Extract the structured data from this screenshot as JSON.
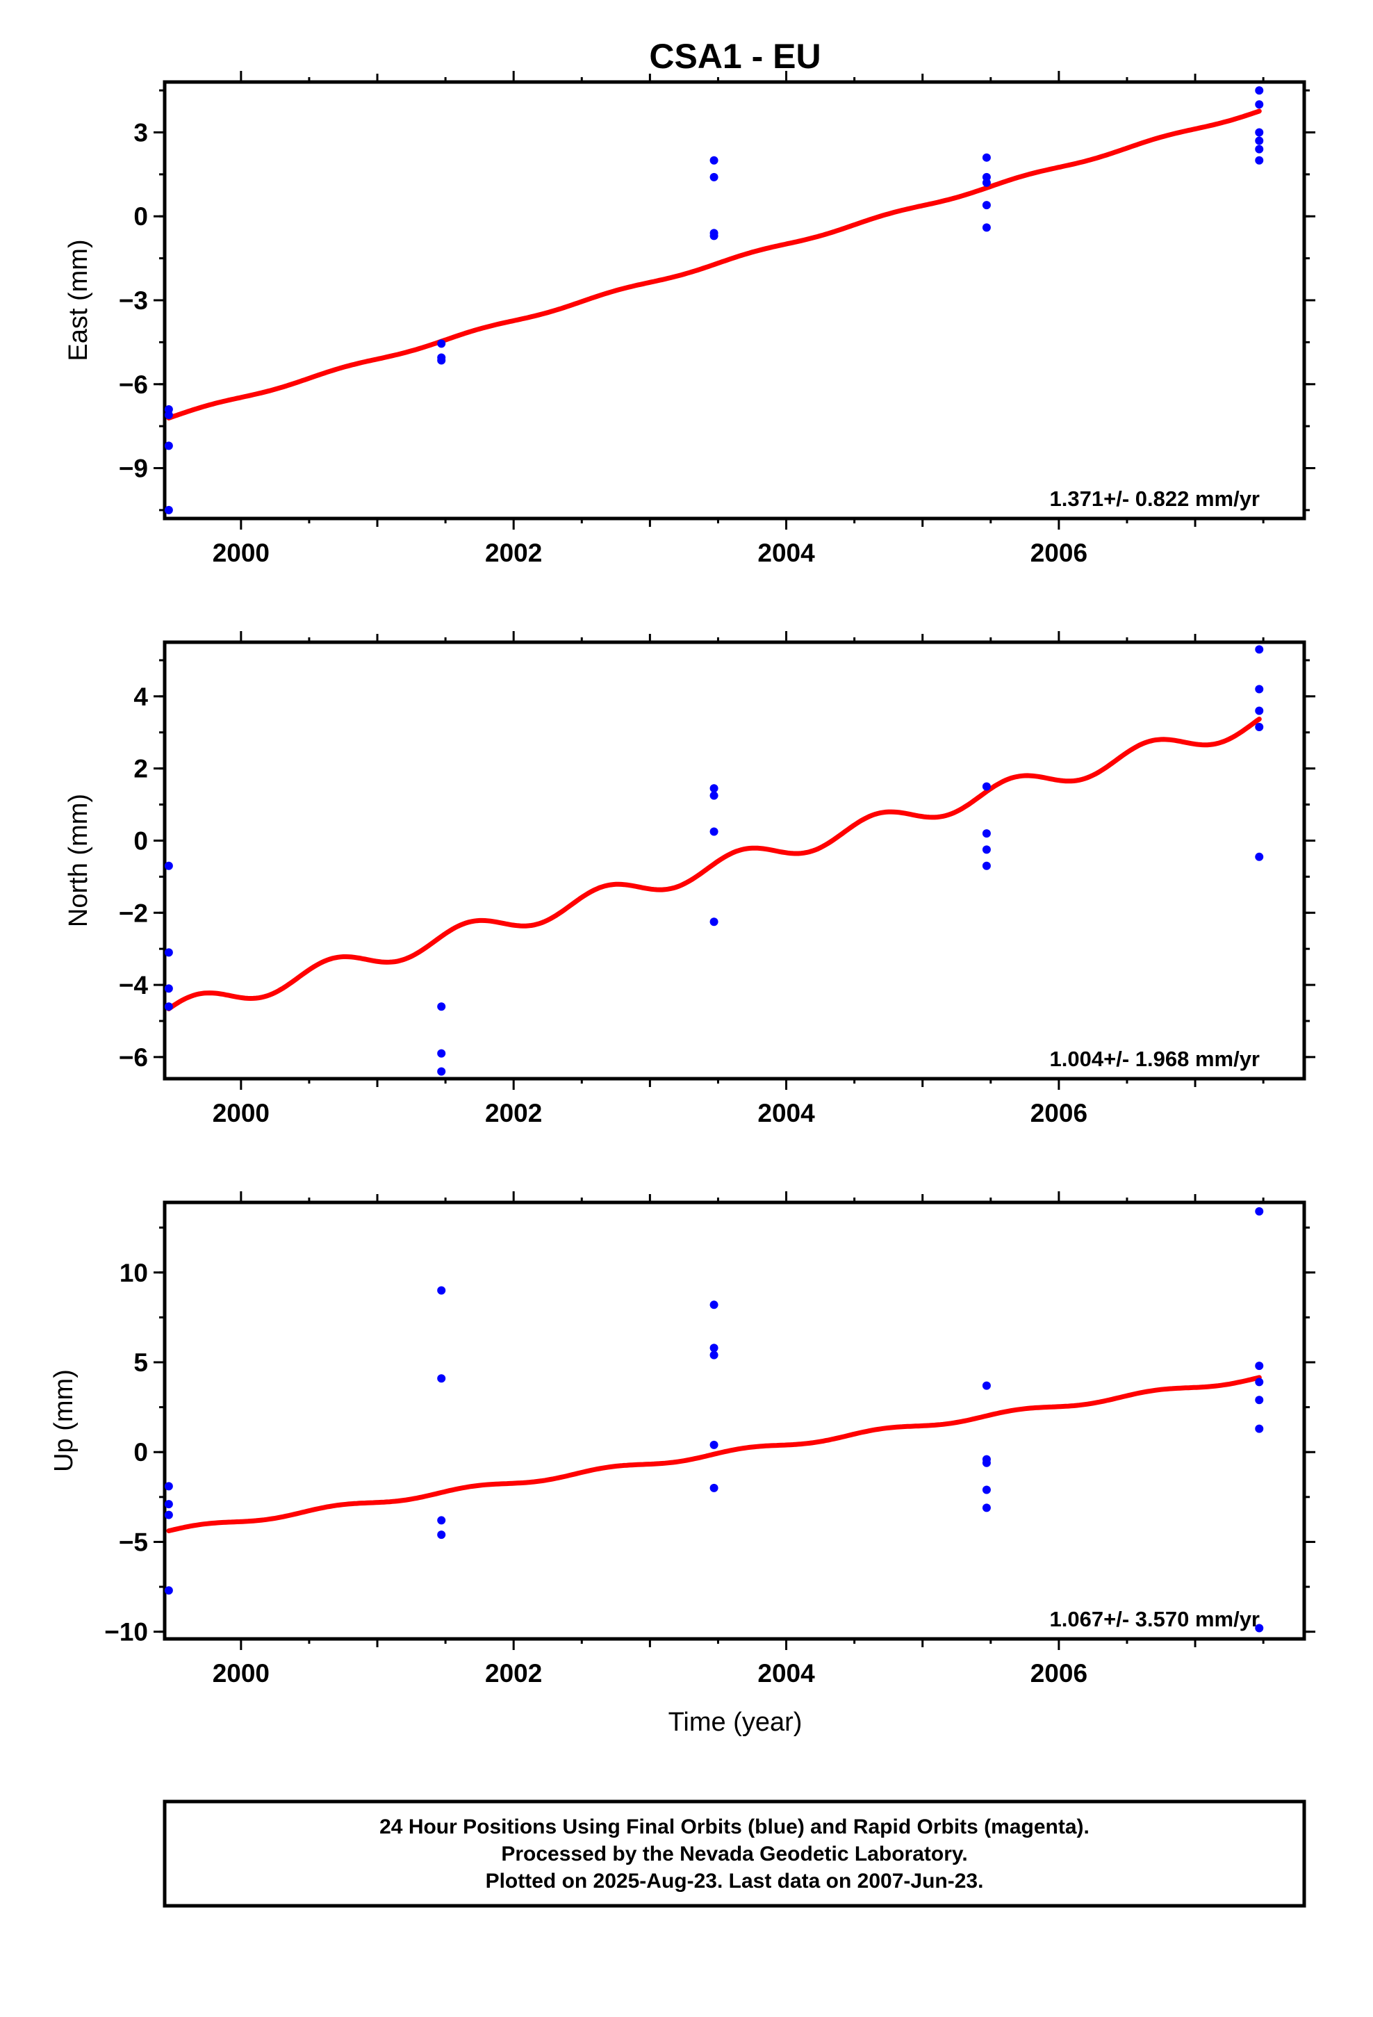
{
  "figure": {
    "title": "CSA1 - EU",
    "xlabel": "Time (year)",
    "info_lines": [
      "24 Hour Positions Using Final Orbits (blue) and Rapid Orbits (magenta).",
      "Processed by the Nevada Geodetic Laboratory.",
      "Plotted on 2025-Aug-23. Last data on 2007-Jun-23."
    ]
  },
  "chart_data": [
    {
      "type": "scatter",
      "ylabel": "East (mm)",
      "xlim": [
        1999.44,
        2007.8
      ],
      "ylim": [
        -10.8,
        4.8
      ],
      "x_ticks": [
        2000,
        2002,
        2004,
        2006
      ],
      "y_ticks": [
        -9,
        -6,
        -3,
        0,
        3
      ],
      "rate_text": "1.371+/- 0.822 mm/yr",
      "point_color": "#0000ff",
      "fit_color": "#ff0000",
      "points": [
        [
          1999.47,
          -6.9
        ],
        [
          1999.47,
          -7.1
        ],
        [
          1999.47,
          -8.2
        ],
        [
          1999.47,
          -10.5
        ],
        [
          2001.47,
          -4.55
        ],
        [
          2001.47,
          -5.05
        ],
        [
          2001.47,
          -5.15
        ],
        [
          2003.47,
          2.0
        ],
        [
          2003.47,
          1.4
        ],
        [
          2003.47,
          -0.6
        ],
        [
          2003.47,
          -0.7
        ],
        [
          2005.47,
          2.1
        ],
        [
          2005.47,
          1.4
        ],
        [
          2005.47,
          1.2
        ],
        [
          2005.47,
          0.4
        ],
        [
          2005.47,
          -0.4
        ],
        [
          2007.47,
          4.5
        ],
        [
          2007.47,
          4.0
        ],
        [
          2007.47,
          3.0
        ],
        [
          2007.47,
          2.7
        ],
        [
          2007.47,
          2.4
        ],
        [
          2007.47,
          2.0
        ]
      ],
      "fit": {
        "x0": 1999.47,
        "x1": 2007.47,
        "y0": -7.2,
        "slope": 1.371,
        "amplitude": 0.05,
        "phase": 0.5
      }
    },
    {
      "type": "scatter",
      "ylabel": "North (mm)",
      "xlim": [
        1999.44,
        2007.8
      ],
      "ylim": [
        -6.6,
        5.5
      ],
      "x_ticks": [
        2000,
        2002,
        2004,
        2006
      ],
      "y_ticks": [
        -6,
        -4,
        -2,
        0,
        2,
        4
      ],
      "rate_text": "1.004+/- 1.968 mm/yr",
      "point_color": "#0000ff",
      "fit_color": "#ff0000",
      "points": [
        [
          1999.47,
          -0.7
        ],
        [
          1999.47,
          -3.1
        ],
        [
          1999.47,
          -4.1
        ],
        [
          1999.47,
          -4.6
        ],
        [
          2001.47,
          -4.6
        ],
        [
          2001.47,
          -5.9
        ],
        [
          2001.47,
          -6.4
        ],
        [
          2003.47,
          1.45
        ],
        [
          2003.47,
          1.25
        ],
        [
          2003.47,
          0.25
        ],
        [
          2003.47,
          -2.25
        ],
        [
          2005.47,
          1.5
        ],
        [
          2005.47,
          0.2
        ],
        [
          2005.47,
          -0.25
        ],
        [
          2005.47,
          -0.7
        ],
        [
          2007.47,
          5.3
        ],
        [
          2007.47,
          4.2
        ],
        [
          2007.47,
          3.6
        ],
        [
          2007.47,
          3.15
        ],
        [
          2007.47,
          -0.45
        ]
      ],
      "fit": {
        "x0": 1999.47,
        "x1": 2007.47,
        "y0": -4.75,
        "slope": 1.004,
        "amplitude": 0.28,
        "phase": 0.42
      }
    },
    {
      "type": "scatter",
      "ylabel": "Up (mm)",
      "xlim": [
        1999.44,
        2007.8
      ],
      "ylim": [
        -10.4,
        13.9
      ],
      "x_ticks": [
        2000,
        2002,
        2004,
        2006
      ],
      "y_ticks": [
        -10,
        -5,
        0,
        5,
        10
      ],
      "rate_text": "1.067+/- 3.570 mm/yr",
      "point_color": "#0000ff",
      "fit_color": "#ff0000",
      "points": [
        [
          1999.47,
          -1.9
        ],
        [
          1999.47,
          -2.9
        ],
        [
          1999.47,
          -3.5
        ],
        [
          1999.47,
          -7.7
        ],
        [
          2001.47,
          9.0
        ],
        [
          2001.47,
          4.1
        ],
        [
          2001.47,
          -3.8
        ],
        [
          2001.47,
          -4.6
        ],
        [
          2003.47,
          8.2
        ],
        [
          2003.47,
          5.8
        ],
        [
          2003.47,
          5.4
        ],
        [
          2003.47,
          0.4
        ],
        [
          2003.47,
          -2.0
        ],
        [
          2005.47,
          3.7
        ],
        [
          2005.47,
          -0.4
        ],
        [
          2005.47,
          -0.6
        ],
        [
          2005.47,
          -2.1
        ],
        [
          2005.47,
          -3.1
        ],
        [
          2007.47,
          13.4
        ],
        [
          2007.47,
          4.8
        ],
        [
          2007.47,
          3.9
        ],
        [
          2007.47,
          2.9
        ],
        [
          2007.47,
          1.3
        ],
        [
          2007.47,
          -9.8
        ]
      ],
      "fit": {
        "x0": 1999.47,
        "x1": 2007.47,
        "y0": -4.4,
        "slope": 1.067,
        "amplitude": 0.12,
        "phase": 0.45
      }
    }
  ]
}
